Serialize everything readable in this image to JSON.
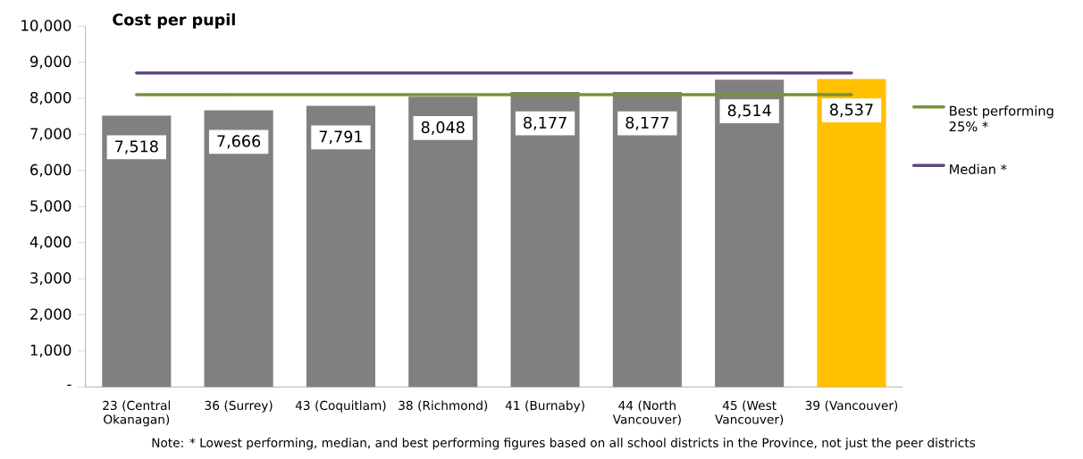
{
  "chart_data": {
    "type": "bar",
    "title": "Cost per pupil",
    "categories": [
      "23 (Central Okanagan)",
      "36 (Surrey)",
      "43 (Coquitlam)",
      "38 (Richmond)",
      "41 (Burnaby)",
      "44 (North Vancouver)",
      "45 (West Vancouver)",
      "39 (Vancouver)"
    ],
    "series": [
      {
        "type": "bar",
        "colors": [
          "#808080",
          "#808080",
          "#808080",
          "#808080",
          "#808080",
          "#808080",
          "#808080",
          "#ffc000"
        ],
        "values": [
          7518,
          7666,
          7791,
          8048,
          8177,
          8177,
          8514,
          8537
        ],
        "value_labels": [
          "7,518",
          "7,666",
          "7,791",
          "8,048",
          "8,177",
          "8,177",
          "8,514",
          "8,537"
        ]
      },
      {
        "type": "line",
        "name": "Best performing 25% *",
        "color": "#77933c",
        "values": [
          8100,
          8100,
          8100,
          8100,
          8100,
          8100,
          8100,
          8100
        ]
      },
      {
        "type": "line",
        "name": "Median *",
        "color": "#604a7b",
        "values": [
          8700,
          8700,
          8700,
          8700,
          8700,
          8700,
          8700,
          8700
        ]
      }
    ],
    "ylim": [
      0,
      10000
    ],
    "yticks": [
      {
        "value": 0,
        "label": "-"
      },
      {
        "value": 1000,
        "label": "1,000"
      },
      {
        "value": 2000,
        "label": "2,000"
      },
      {
        "value": 3000,
        "label": "3,000"
      },
      {
        "value": 4000,
        "label": "4,000"
      },
      {
        "value": 5000,
        "label": "5,000"
      },
      {
        "value": 6000,
        "label": "6,000"
      },
      {
        "value": 7000,
        "label": "7,000"
      },
      {
        "value": 8000,
        "label": "8,000"
      },
      {
        "value": 9000,
        "label": "9,000"
      },
      {
        "value": 10000,
        "label": "10,000"
      }
    ],
    "legend": "right",
    "annotations": [
      "Note: * Lowest performing, median, and best performing figures based on all school districts in the Province, not just the peer districts"
    ]
  }
}
